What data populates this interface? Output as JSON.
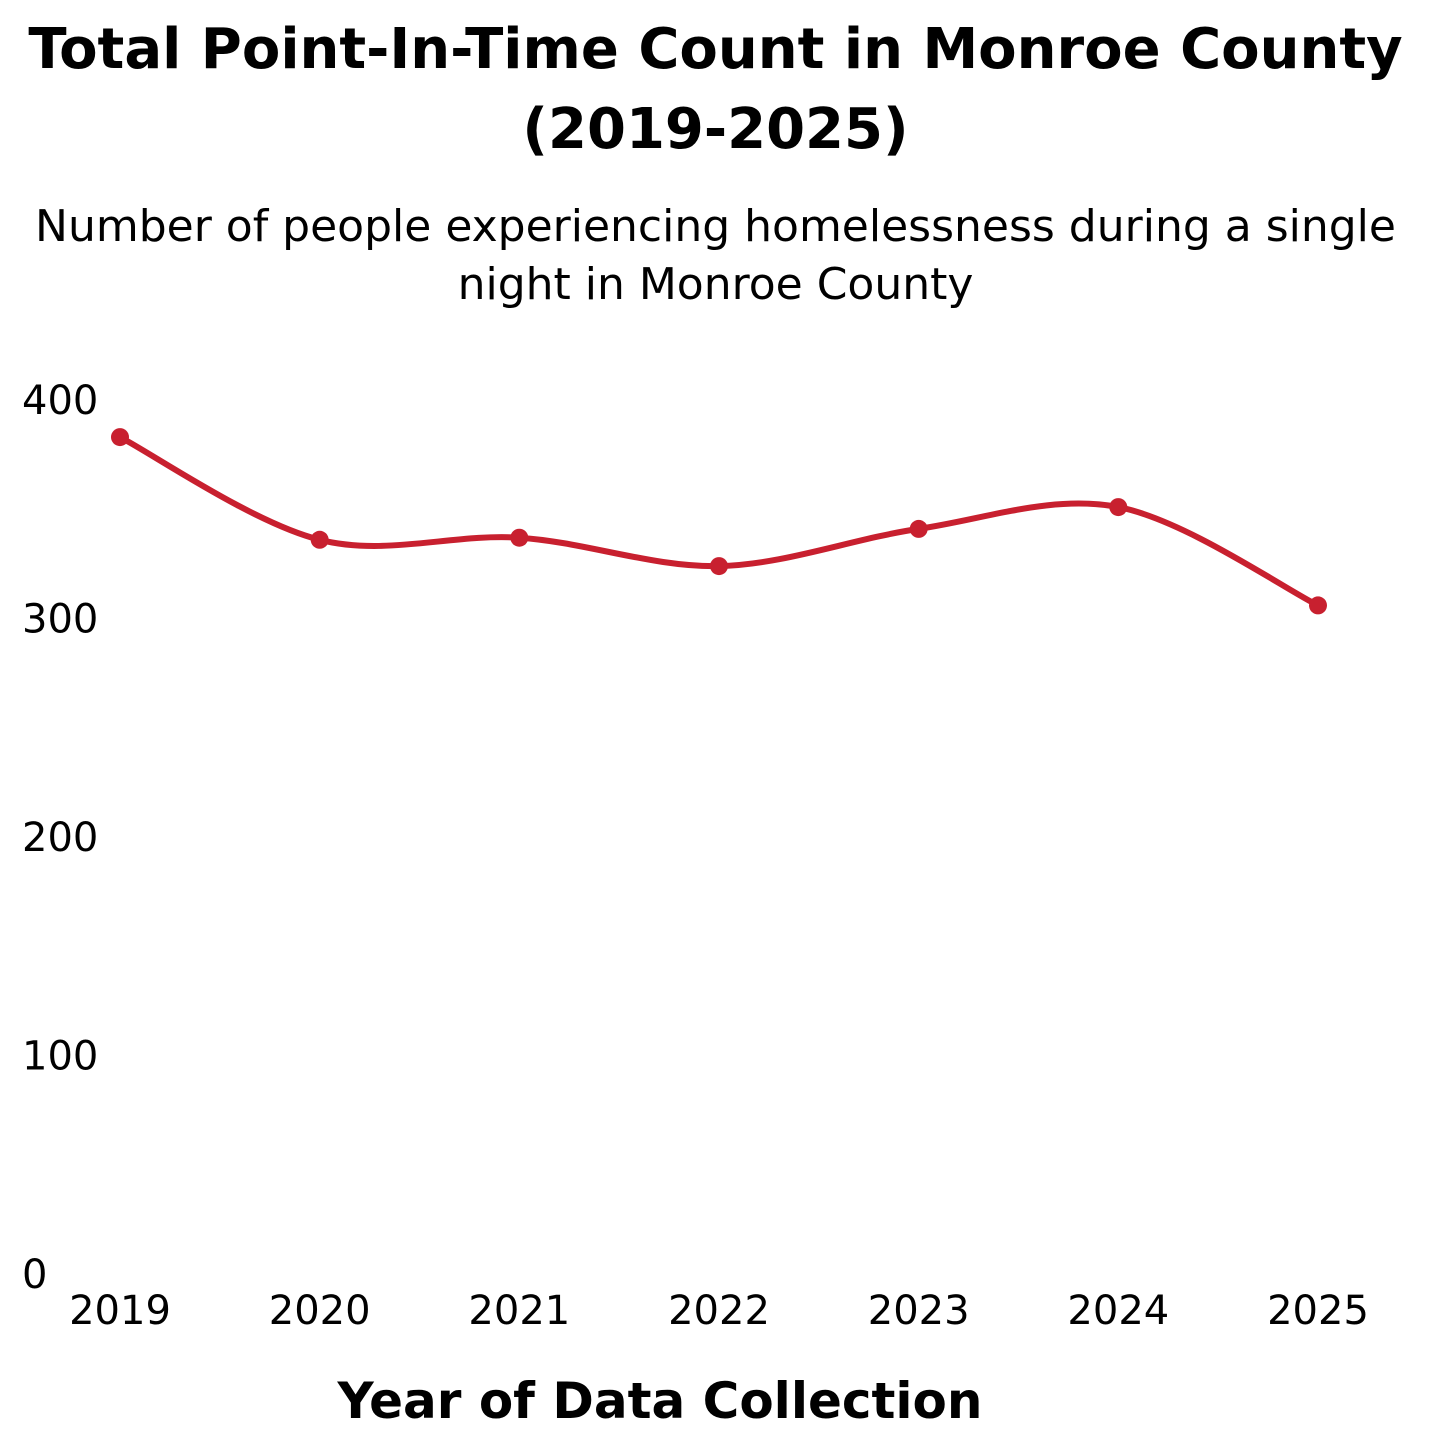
{
  "chart_data": {
    "type": "line",
    "title_lines": [
      "Total Point-In-Time Count in Monroe County",
      "(2019-2025)"
    ],
    "subtitle_lines": [
      "Number of people experiencing homelessness during a single",
      "night in Monroe County"
    ],
    "xlabel": "Year of Data Collection",
    "ylabel": "",
    "categories": [
      "2019",
      "2020",
      "2021",
      "2022",
      "2023",
      "2024",
      "2025"
    ],
    "series": [
      {
        "values": [
          383,
          336,
          337,
          324,
          341,
          351,
          306
        ],
        "color": "#c8202f"
      }
    ],
    "y_ticks": [
      "0",
      "100",
      "200",
      "300",
      "400"
    ],
    "ylim": [
      0,
      400
    ],
    "grid": false,
    "legend": "none",
    "line_style": "smooth"
  }
}
